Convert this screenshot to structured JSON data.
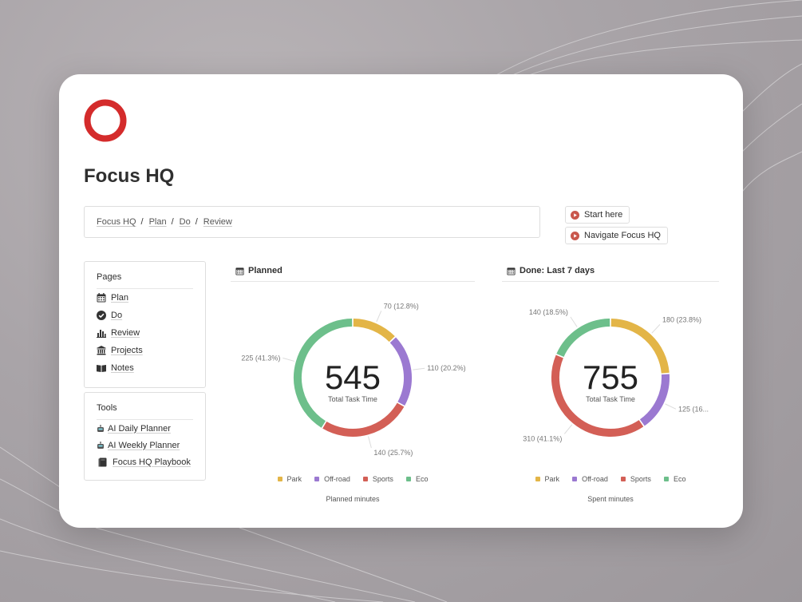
{
  "app": {
    "title": "Focus HQ",
    "brand_color": "#d42b2b"
  },
  "breadcrumb": [
    "Focus HQ",
    "Plan",
    "Do",
    "Review"
  ],
  "buttons": {
    "start": "Start here",
    "navigate": "Navigate Focus HQ"
  },
  "pages_panel": {
    "title": "Pages",
    "items": [
      {
        "label": "Plan",
        "icon": "calendar-icon"
      },
      {
        "label": "Do",
        "icon": "check-circle-icon"
      },
      {
        "label": "Review",
        "icon": "bar-chart-icon"
      },
      {
        "label": "Projects",
        "icon": "bank-icon"
      },
      {
        "label": "Notes",
        "icon": "book-open-icon"
      }
    ]
  },
  "tools_panel": {
    "title": "Tools",
    "items": [
      {
        "label": "AI Daily Planner",
        "icon": "robot-icon"
      },
      {
        "label": "AI Weekly Planner",
        "icon": "robot-icon"
      },
      {
        "label": "Focus HQ Playbook",
        "icon": "book-icon"
      }
    ]
  },
  "charts": {
    "planned": {
      "header": "Planned",
      "center_value": "545",
      "center_label": "Total Task Time",
      "caption": "Planned minutes",
      "legend": [
        "Park",
        "Off-road",
        "Sports",
        "Eco"
      ]
    },
    "done": {
      "header": "Done: Last 7 days",
      "center_value": "755",
      "center_label": "Total Task Time",
      "caption": "Spent minutes",
      "legend": [
        "Park",
        "Off-road",
        "Sports",
        "Eco"
      ]
    }
  },
  "chart_data": [
    {
      "type": "pie",
      "title": "Planned",
      "categories": [
        "Park",
        "Off-road",
        "Sports",
        "Eco"
      ],
      "values": [
        70,
        110,
        140,
        225
      ],
      "labels": [
        "70 (12.8%)",
        "110 (20.2%)",
        "140 (25.7%)",
        "225 (41.3%)"
      ],
      "colors": [
        "#e3b547",
        "#9b79d1",
        "#d35f56",
        "#6dbf8b"
      ],
      "total": 545,
      "legend_position": "bottom"
    },
    {
      "type": "pie",
      "title": "Done: Last 7 days",
      "categories": [
        "Park",
        "Off-road",
        "Sports",
        "Eco"
      ],
      "values": [
        180,
        125,
        310,
        140
      ],
      "labels": [
        "180 (23.8%)",
        "125 (16...",
        "310 (41.1%)",
        "140 (18.5%)"
      ],
      "colors": [
        "#e3b547",
        "#9b79d1",
        "#d35f56",
        "#6dbf8b"
      ],
      "total": 755,
      "legend_position": "bottom"
    }
  ]
}
